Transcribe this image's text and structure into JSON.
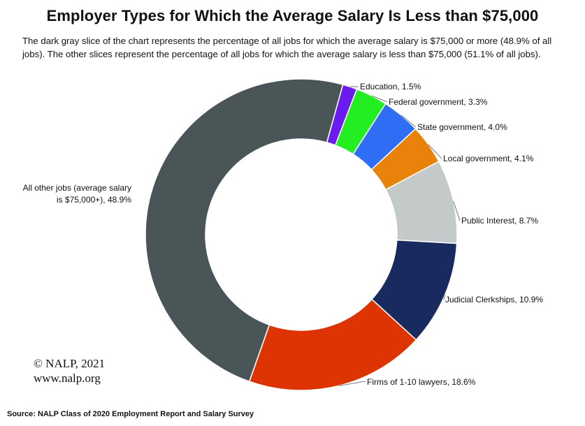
{
  "title": "Employer Types for Which the Average Salary Is Less than $75,000",
  "subtitle": "The dark gray slice of the chart represents the percentage of all jobs for which the average salary is $75,000 or more (48.9% of all jobs). The other slices represent the percentage of all jobs for which the average salary is less than $75,000 (51.1% of all jobs).",
  "copyright": "© NALP, 2021",
  "website": "www.nalp.org",
  "source": "Source: NALP Class of 2020 Employment Report and Salary Survey",
  "chart_data": {
    "type": "pie",
    "variant": "donut",
    "title": "Employer Types for Which the Average Salary Is Less than $75,000",
    "unit": "%",
    "slices": [
      {
        "name": "Education",
        "value": 1.5,
        "label": "Education, 1.5%",
        "color": "#6a1bef"
      },
      {
        "name": "Federal government",
        "value": 3.3,
        "label": "Federal government, 3.3%",
        "color": "#22ee22"
      },
      {
        "name": "State government",
        "value": 4.0,
        "label": "State government, 4.0%",
        "color": "#2f6df5"
      },
      {
        "name": "Local government",
        "value": 4.1,
        "label": "Local government, 4.1%",
        "color": "#e8820a"
      },
      {
        "name": "Public Interest",
        "value": 8.7,
        "label": "Public Interest, 8.7%",
        "color": "#c4cac9"
      },
      {
        "name": "Judicial Clerkships",
        "value": 10.9,
        "label": "Judicial Clerkships, 10.9%",
        "color": "#182a5e"
      },
      {
        "name": "Firms of 1-10 lawyers",
        "value": 18.6,
        "label": "Firms of 1-10 lawyers, 18.6%",
        "color": "#de3302"
      },
      {
        "name": "All other jobs (average salary is $75,000+)",
        "value": 48.9,
        "label_lines": [
          "All other jobs (average salary",
          "is $75,000+), 48.9%"
        ],
        "color": "#4a5557"
      }
    ]
  }
}
